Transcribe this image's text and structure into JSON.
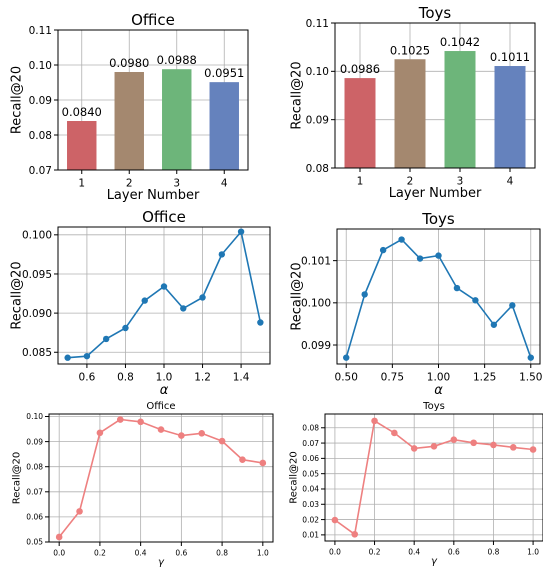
{
  "chart_data": [
    {
      "type": "bar",
      "title": "Office",
      "xlabel": "Layer Number",
      "ylabel": "Recall@20",
      "categories": [
        "1",
        "2",
        "3",
        "4"
      ],
      "values": [
        0.084,
        0.098,
        0.0988,
        0.0951
      ],
      "value_labels": [
        "0.0840",
        "0.0980",
        "0.0988",
        "0.0951"
      ],
      "colors": [
        "#cd6367",
        "#a4886f",
        "#6db57a",
        "#6582bd"
      ],
      "ylim": [
        0.07,
        0.11
      ],
      "yticks": [
        0.07,
        0.08,
        0.09,
        0.1,
        0.11
      ],
      "ytick_labels": [
        "0.07",
        "0.08",
        "0.09",
        "0.10",
        "0.11"
      ],
      "grid": true
    },
    {
      "type": "bar",
      "title": "Toys",
      "xlabel": "Layer Number",
      "ylabel": "Recall@20",
      "categories": [
        "1",
        "2",
        "3",
        "4"
      ],
      "values": [
        0.0986,
        0.1025,
        0.1042,
        0.1011
      ],
      "value_labels": [
        "0.0986",
        "0.1025",
        "0.1042",
        "0.1011"
      ],
      "colors": [
        "#cd6367",
        "#a4886f",
        "#6db57a",
        "#6582bd"
      ],
      "ylim": [
        0.08,
        0.11
      ],
      "yticks": [
        0.08,
        0.09,
        0.1,
        0.11
      ],
      "ytick_labels": [
        "0.08",
        "0.09",
        "0.10",
        "0.11"
      ],
      "grid": true
    },
    {
      "type": "line",
      "title": "Office",
      "xlabel": "α",
      "ylabel": "Recall@20",
      "x": [
        0.5,
        0.6,
        0.7,
        0.8,
        0.9,
        1.0,
        1.1,
        1.2,
        1.3,
        1.4,
        1.5
      ],
      "y": [
        0.0843,
        0.0845,
        0.0867,
        0.0881,
        0.0916,
        0.0934,
        0.0906,
        0.092,
        0.0975,
        0.1004,
        0.0888
      ],
      "color": "#1f77b4",
      "xlim": [
        0.45,
        1.55
      ],
      "ylim": [
        0.0835,
        0.101
      ],
      "xticks": [
        0.6,
        0.8,
        1.0,
        1.2,
        1.4
      ],
      "xtick_labels": [
        "0.6",
        "0.8",
        "1.0",
        "1.2",
        "1.4"
      ],
      "yticks": [
        0.085,
        0.09,
        0.095,
        0.1
      ],
      "ytick_labels": [
        "0.085",
        "0.090",
        "0.095",
        "0.100"
      ],
      "grid": true
    },
    {
      "type": "line",
      "title": "Toys",
      "xlabel": "α",
      "ylabel": "Recall@20",
      "x": [
        0.5,
        0.6,
        0.7,
        0.8,
        0.9,
        1.0,
        1.1,
        1.2,
        1.3,
        1.4,
        1.5
      ],
      "y": [
        0.0987,
        0.1002,
        0.10125,
        0.1015,
        0.10105,
        0.10112,
        0.10035,
        0.10006,
        0.09948,
        0.09994,
        0.0987
      ],
      "color": "#1f77b4",
      "xlim": [
        0.45,
        1.55
      ],
      "ylim": [
        0.09855,
        0.10175
      ],
      "xticks": [
        0.5,
        0.75,
        1.0,
        1.25,
        1.5
      ],
      "xtick_labels": [
        "0.50",
        "0.75",
        "1.00",
        "1.25",
        "1.50"
      ],
      "yticks": [
        0.099,
        0.1,
        0.101
      ],
      "ytick_labels": [
        "0.099",
        "0.100",
        "0.101"
      ],
      "grid": true
    },
    {
      "type": "line",
      "title": "Office",
      "xlabel": "γ",
      "ylabel": "Recall@20",
      "x": [
        0.0,
        0.1,
        0.2,
        0.3,
        0.4,
        0.5,
        0.6,
        0.7,
        0.8,
        0.9,
        1.0
      ],
      "y": [
        0.052,
        0.0622,
        0.0935,
        0.0988,
        0.0979,
        0.0948,
        0.0924,
        0.0933,
        0.0902,
        0.0828,
        0.0815
      ],
      "color": "#ee8080",
      "xlim": [
        -0.05,
        1.05
      ],
      "ylim": [
        0.05,
        0.101
      ],
      "xticks": [
        0.0,
        0.2,
        0.4,
        0.6,
        0.8,
        1.0
      ],
      "xtick_labels": [
        "0.0",
        "0.2",
        "0.4",
        "0.6",
        "0.8",
        "1.0"
      ],
      "yticks": [
        0.05,
        0.06,
        0.07,
        0.08,
        0.09,
        0.1
      ],
      "ytick_labels": [
        "0.05",
        "0.06",
        "0.07",
        "0.08",
        "0.09",
        "0.10"
      ],
      "grid": true
    },
    {
      "type": "line",
      "title": "Toys",
      "xlabel": "γ",
      "ylabel": "Recall@20",
      "x": [
        0.0,
        0.1,
        0.2,
        0.3,
        0.4,
        0.5,
        0.6,
        0.7,
        0.8,
        0.9,
        1.0
      ],
      "y": [
        0.0197,
        0.0104,
        0.0845,
        0.0766,
        0.0665,
        0.0679,
        0.0722,
        0.0702,
        0.0688,
        0.0672,
        0.0658
      ],
      "color": "#ee8080",
      "xlim": [
        -0.05,
        1.05
      ],
      "ylim": [
        0.006,
        0.089
      ],
      "xticks": [
        0.0,
        0.2,
        0.4,
        0.6,
        0.8,
        1.0
      ],
      "xtick_labels": [
        "0.0",
        "0.2",
        "0.4",
        "0.6",
        "0.8",
        "1.0"
      ],
      "yticks": [
        0.01,
        0.02,
        0.03,
        0.04,
        0.05,
        0.06,
        0.07,
        0.08
      ],
      "ytick_labels": [
        "0.01",
        "0.02",
        "0.03",
        "0.04",
        "0.05",
        "0.06",
        "0.07",
        "0.08"
      ],
      "grid": true
    }
  ]
}
